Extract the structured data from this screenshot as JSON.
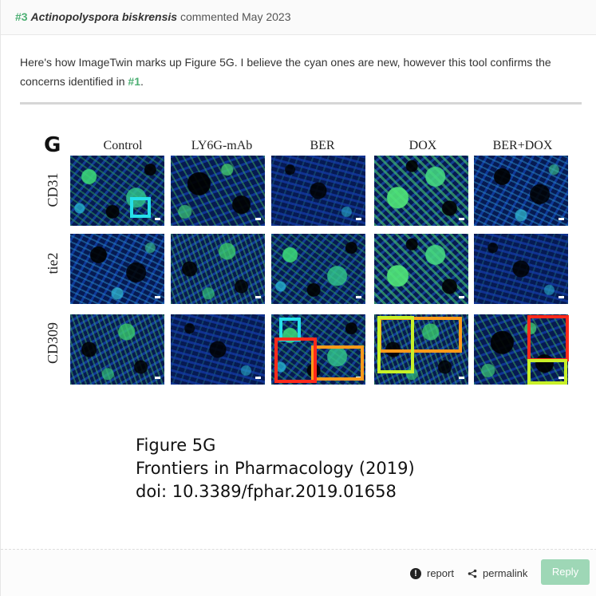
{
  "header": {
    "number": "#3",
    "author": "Actinopolyspora biskrensis",
    "meta": "commented May 2023"
  },
  "body": {
    "text_before": "Here's how ImageTwin marks up Figure 5G. I believe the cyan ones are new, however this tool confirms the concerns identified in ",
    "link": "#1",
    "text_after": "."
  },
  "figure": {
    "letter": "G",
    "columns": [
      "Control",
      "LY6G-mAb",
      "BER",
      "DOX",
      "BER+DOX"
    ],
    "rows": [
      "CD31",
      "tie2",
      "CD309"
    ],
    "highlight_colors": {
      "cyan": "#25e0e8",
      "orange": "#ff9a1a",
      "red": "#ff2a1a",
      "yellow": "#c8f028"
    }
  },
  "caption": {
    "line1": "Figure 5G",
    "line2": "Frontiers in Pharmacology (2019)",
    "line3": "doi: 10.3389/fphar.2019.01658"
  },
  "footer": {
    "report_label": "report",
    "permalink_label": "permalink",
    "reply_label": "Reply",
    "report_icon": "exclamation-circle-icon",
    "permalink_icon": "share-icon",
    "accent_color": "#9ed7b6"
  }
}
